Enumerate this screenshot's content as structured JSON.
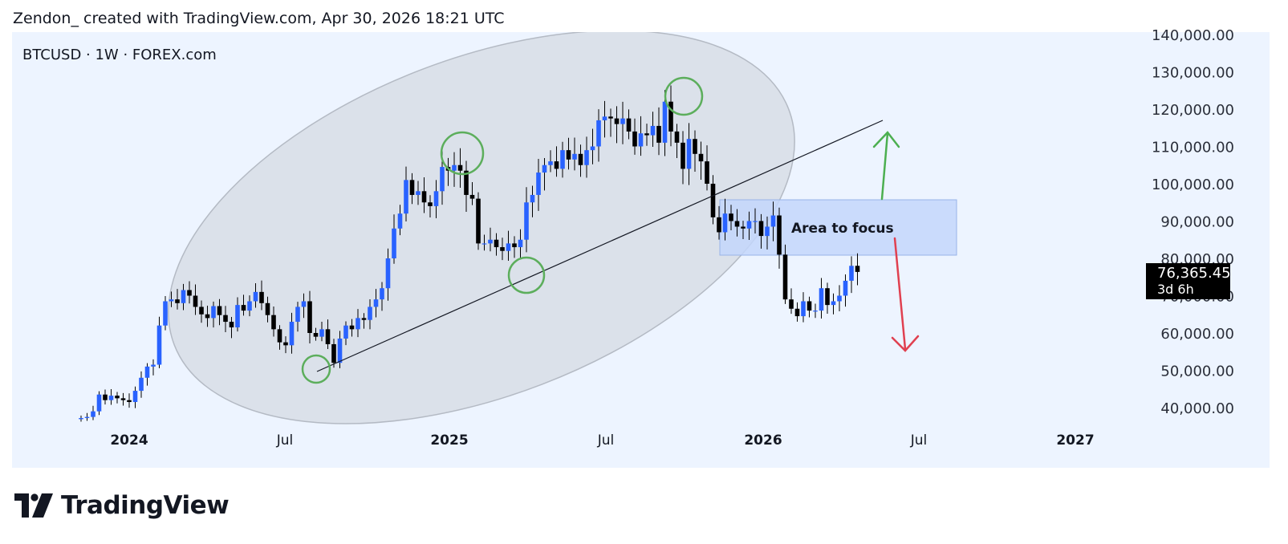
{
  "header": {
    "caption": "Zendon_ created with TradingView.com, Apr 30, 2026 18:21 UTC"
  },
  "symbol_line": "BTCUSD · 1W · FOREX.com",
  "brand": {
    "name": "TradingView"
  },
  "price_tag": {
    "value": "76,365.45",
    "countdown": "3d 6h"
  },
  "annotation": {
    "area_label": "Area to focus"
  },
  "colors": {
    "up": "#2962ff",
    "down": "#000000",
    "panel": "#edf4ff",
    "ellipse": "#d7dde6",
    "focus": "#c3d6fb",
    "circle": "#5cae5c",
    "arrow_up": "#4caf50",
    "arrow_down": "#e04050"
  },
  "chart_data": {
    "type": "candlestick",
    "symbol": "BTCUSD",
    "interval": "1W",
    "y_axis": {
      "scale": "linear",
      "range": [
        36000,
        140000
      ],
      "ticks": [
        "40,000.00",
        "50,000.00",
        "60,000.00",
        "70,000.00",
        "80,000.00",
        "90,000.00",
        "100,000.00",
        "110,000.00",
        "120,000.00",
        "130,000.00",
        "140,000.00"
      ]
    },
    "x_axis": {
      "ticks": [
        "2024",
        "Jul",
        "2025",
        "Jul",
        "2026",
        "Jul",
        "2027"
      ]
    },
    "last_close": 76365.45,
    "closes": [
      37200,
      37500,
      39000,
      43500,
      42000,
      43200,
      42500,
      42000,
      41500,
      44500,
      48000,
      51000,
      51500,
      62000,
      68500,
      69000,
      68000,
      71500,
      70000,
      67000,
      65000,
      64000,
      67200,
      64800,
      63000,
      61500,
      67500,
      66000,
      68500,
      71000,
      68000,
      64800,
      61000,
      57500,
      56700,
      63000,
      67000,
      68500,
      60000,
      59000,
      61000,
      57000,
      52000,
      58500,
      62000,
      61000,
      64000,
      63500,
      67000,
      69000,
      72000,
      80000,
      88000,
      92000,
      101000,
      97000,
      98000,
      95000,
      94000,
      98000,
      104500,
      103500,
      105000,
      103500,
      97000,
      96000,
      84000,
      84000,
      85000,
      83000,
      82000,
      84000,
      83000,
      85000,
      95000,
      97000,
      103000,
      105000,
      106000,
      104000,
      109000,
      106500,
      108000,
      105000,
      109000,
      110000,
      117000,
      118000,
      117500,
      116000,
      117500,
      114000,
      110000,
      113500,
      113000,
      115500,
      111000,
      122000,
      114000,
      111000,
      104000,
      112000,
      108000,
      106000,
      100000,
      91000,
      87000,
      92000,
      90000,
      88500,
      88000,
      90000,
      90000,
      86000,
      88500,
      91500,
      81000,
      69000,
      66500,
      64500,
      68500,
      66000,
      66000,
      72000,
      67500,
      68500,
      70000,
      74000,
      78000,
      76365.45
    ]
  }
}
